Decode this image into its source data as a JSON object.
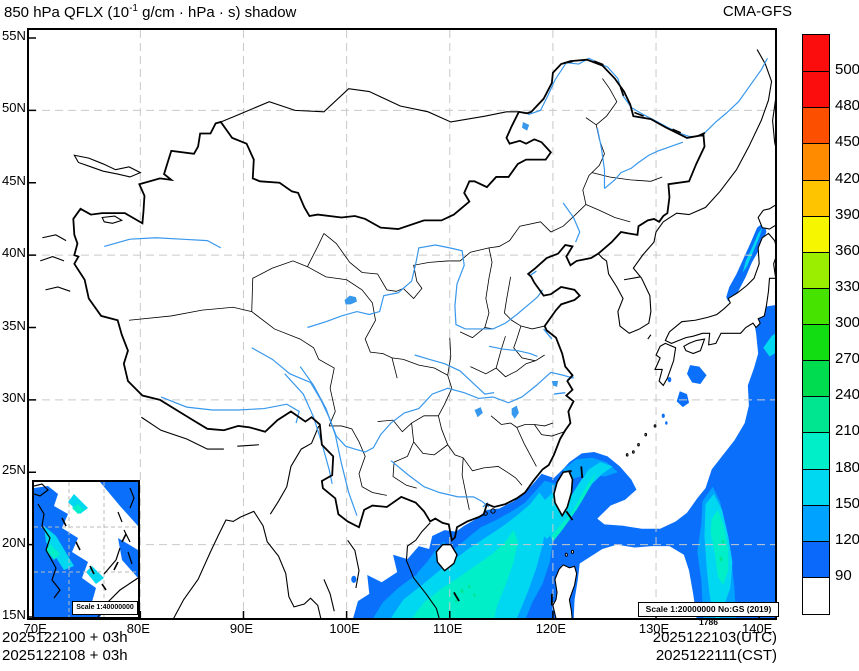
{
  "header": {
    "title_prefix": "850 hPa QFLX (10",
    "title_sup": "-1",
    "title_suffix": " g/cm · hPa · s) shadow",
    "model": "CMA-GFS"
  },
  "axes": {
    "lat": [
      {
        "label": "55N",
        "value": 55
      },
      {
        "label": "50N",
        "value": 50
      },
      {
        "label": "45N",
        "value": 45
      },
      {
        "label": "40N",
        "value": 40
      },
      {
        "label": "35N",
        "value": 35
      },
      {
        "label": "30N",
        "value": 30
      },
      {
        "label": "25N",
        "value": 25
      },
      {
        "label": "20N",
        "value": 20
      },
      {
        "label": "15N",
        "value": 15
      }
    ],
    "lon": [
      {
        "label": "70E",
        "value": 70
      },
      {
        "label": "80E",
        "value": 80
      },
      {
        "label": "90E",
        "value": 90
      },
      {
        "label": "100E",
        "value": 100
      },
      {
        "label": "110E",
        "value": 110
      },
      {
        "label": "120E",
        "value": 120
      },
      {
        "label": "130E",
        "value": 130
      },
      {
        "label": "140E",
        "value": 140
      }
    ]
  },
  "colorbar": {
    "levels": [
      90,
      120,
      150,
      180,
      210,
      240,
      270,
      300,
      330,
      360,
      390,
      420,
      450,
      480,
      500
    ],
    "colors_bottom_to_top": [
      "#ffffff",
      "#0a68fa",
      "#00a2ff",
      "#00d8f2",
      "#00eec8",
      "#00e590",
      "#00dc50",
      "#12dc12",
      "#46e200",
      "#9cee00",
      "#f6f600",
      "#ffc400",
      "#ff8c00",
      "#fc5000",
      "#fb0d0d",
      "#fb0d0d"
    ]
  },
  "map_notes": {
    "scale_main": "Scale 1:20000000 No:GS (2019) 1786",
    "scale_inset": "Scale 1:40000000"
  },
  "footer": {
    "left_line1": "2025122100 + 03h",
    "left_line2": "2025122108 + 03h",
    "right_line1": "2025122103(UTC)",
    "right_line2": "2025122111(CST)"
  },
  "chart_data": {
    "type": "heatmap",
    "title": "850 hPa QFLX (10^-1 g/cm · hPa · s) shadow",
    "model": "CMA-GFS",
    "init_time_utc": "2025122100",
    "init_time_cst": "2025122108",
    "forecast_hour": "+03h",
    "valid_time_utc": "2025122103(UTC)",
    "valid_time_cst": "2025122111(CST)",
    "lon_range": [
      70,
      140
    ],
    "lat_range": [
      15,
      55
    ],
    "grid": {
      "lons": [
        80,
        90,
        100,
        110,
        120,
        130
      ],
      "lats": [
        20,
        30,
        40,
        50
      ]
    },
    "levels": [
      90,
      120,
      150,
      180,
      210,
      240,
      270,
      300,
      330,
      360,
      390,
      420,
      450,
      480,
      500
    ],
    "colors_bottom_to_top": [
      "#ffffff",
      "#0a68fa",
      "#00a2ff",
      "#00d8f2",
      "#00eec8",
      "#00e590",
      "#00dc50",
      "#12dc12",
      "#46e200",
      "#9cee00",
      "#f6f600",
      "#ffc400",
      "#ff8c00",
      "#fc5000",
      "#fb0d0d",
      "#fb0d0d"
    ],
    "legend_position": "right",
    "shaded_regions": [
      {
        "name": "South China Sea / Indochina band",
        "approx_extent": "100-122E, 15-25N",
        "max_level": "210-240"
      },
      {
        "name": "Taiwan Strait and band northeast of Taiwan",
        "approx_extent": "117-128E, 21-26.5N",
        "max_level": "180-210"
      },
      {
        "name": "Western Pacific tall band",
        "approx_extent": "133-142E, 15-27N",
        "max_level": "210-240"
      },
      {
        "name": "Band along east edge south of Japan",
        "approx_extent": "137-142E, 27-36.6N",
        "max_level": "150-180"
      },
      {
        "name": "Band northeast of Japan",
        "approx_extent": "137-141E, 37-42.5N",
        "max_level": "150-180"
      },
      {
        "name": "Small patches south of Japan / Ryukyu",
        "approx_extent": "129-135E, 27-33N",
        "max_level": "90-120"
      }
    ]
  }
}
